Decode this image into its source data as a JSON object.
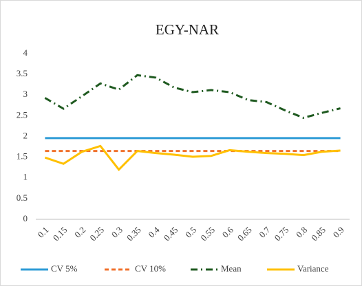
{
  "chart_data": {
    "type": "line",
    "title": "EGY-NAR",
    "categories": [
      "0.1",
      "0.15",
      "0.2",
      "0.25",
      "0.3",
      "0.35",
      "0.4",
      "0.45",
      "0.5",
      "0.55",
      "0.6",
      "0.65",
      "0.7",
      "0.75",
      "0.8",
      "0.85",
      "0.9"
    ],
    "ylim": [
      0,
      4
    ],
    "yticks": [
      0,
      0.5,
      1,
      1.5,
      2,
      2.5,
      3,
      3.5,
      4
    ],
    "grid": false,
    "legend": "bottom",
    "series": [
      {
        "name": "CV 5%",
        "color": "#2e9bd6",
        "style": "solid",
        "values": [
          1.96,
          1.96,
          1.96,
          1.96,
          1.96,
          1.96,
          1.96,
          1.96,
          1.96,
          1.96,
          1.96,
          1.96,
          1.96,
          1.96,
          1.96,
          1.96,
          1.96
        ]
      },
      {
        "name": "CV 10%",
        "color": "#f0712c",
        "style": "dashed",
        "values": [
          1.65,
          1.65,
          1.65,
          1.65,
          1.65,
          1.65,
          1.65,
          1.65,
          1.65,
          1.65,
          1.65,
          1.65,
          1.65,
          1.65,
          1.65,
          1.65,
          1.65
        ]
      },
      {
        "name": "Mean",
        "color": "#1f5a20",
        "style": "dashdot",
        "values": [
          2.93,
          2.67,
          2.97,
          3.28,
          3.13,
          3.48,
          3.42,
          3.18,
          3.07,
          3.12,
          3.07,
          2.88,
          2.83,
          2.63,
          2.45,
          2.57,
          2.68
        ]
      },
      {
        "name": "Variance",
        "color": "#ffc000",
        "style": "solid",
        "values": [
          1.49,
          1.34,
          1.63,
          1.77,
          1.2,
          1.65,
          1.6,
          1.56,
          1.51,
          1.53,
          1.67,
          1.63,
          1.6,
          1.58,
          1.55,
          1.63,
          1.66
        ]
      }
    ]
  }
}
